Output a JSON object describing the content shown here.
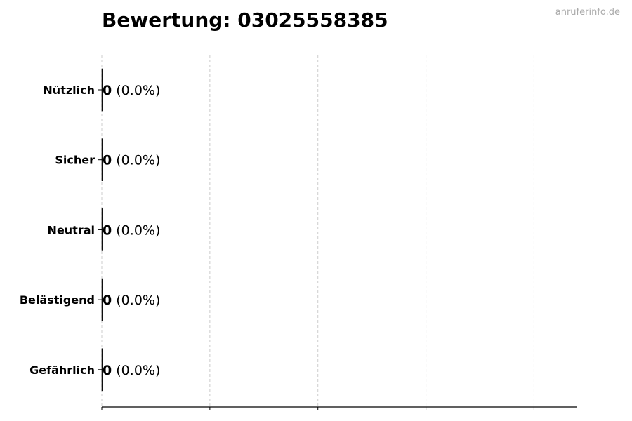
{
  "title": "Bewertung: 03025558385",
  "watermark": "anruferinfo.de",
  "chart_data": {
    "type": "bar",
    "orientation": "horizontal",
    "title": "Bewertung: 03025558385",
    "categories": [
      "Nützlich",
      "Sicher",
      "Neutral",
      "Belästigend",
      "Gefährlich"
    ],
    "values": [
      0,
      0,
      0,
      0,
      0
    ],
    "data_labels": [
      {
        "count": "0",
        "pct": "(0.0%)"
      },
      {
        "count": "0",
        "pct": "(0.0%)"
      },
      {
        "count": "0",
        "pct": "(0.0%)"
      },
      {
        "count": "0",
        "pct": "(0.0%)"
      },
      {
        "count": "0",
        "pct": "(0.0%)"
      }
    ],
    "xlim": [
      0,
      0.044
    ],
    "xticks": [
      0,
      0.01,
      0.02,
      0.03,
      0.04
    ],
    "xtick_labels_shown": false,
    "grid": "x, dashed",
    "xlabel": "",
    "ylabel": ""
  }
}
